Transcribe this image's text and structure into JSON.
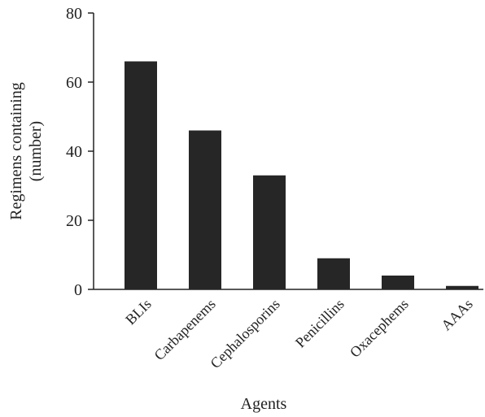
{
  "chart_data": {
    "type": "bar",
    "title": "",
    "xlabel": "Agents",
    "ylabel_lines": [
      "Regimens containing",
      "(number)"
    ],
    "categories": [
      "BLIs",
      "Carbapenems",
      "Cephalosporins",
      "Penicillins",
      "Oxacephems",
      "AAAs"
    ],
    "values": [
      66,
      46,
      33,
      9,
      4,
      1
    ],
    "ylim": [
      0,
      80
    ],
    "yticks": [
      0,
      20,
      40,
      60,
      80
    ],
    "grid": false,
    "legend": "none",
    "bar_color": "#262626"
  }
}
